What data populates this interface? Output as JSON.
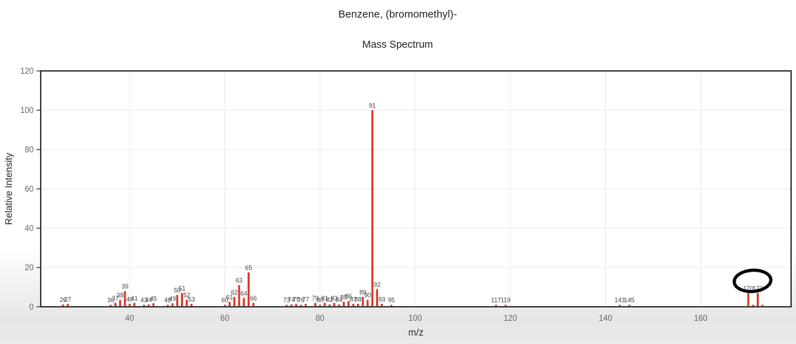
{
  "header": {
    "title": "Benzene, (bromomethyl)-",
    "subtitle": "Mass Spectrum"
  },
  "chart_data": {
    "type": "bar",
    "title": "Benzene, (bromomethyl)-",
    "subtitle": "Mass Spectrum",
    "xlabel": "m/z",
    "ylabel": "Relative Intensity",
    "xlim": [
      21.3,
      179.0
    ],
    "ylim": [
      0,
      120
    ],
    "x_ticks": [
      40,
      60,
      80,
      100,
      120,
      140,
      160
    ],
    "y_ticks": [
      0,
      20,
      40,
      60,
      80,
      100,
      120
    ],
    "grid": true,
    "legend": "none",
    "bar_color": "#d93226",
    "frame_color": "#3a3a3a",
    "grid_color": "#e9e9e9",
    "peaks": [
      {
        "mz": 26,
        "intensity": 1.2,
        "label": "26"
      },
      {
        "mz": 27,
        "intensity": 1.5,
        "label": "27"
      },
      {
        "mz": 36,
        "intensity": 1.0,
        "label": "36"
      },
      {
        "mz": 37,
        "intensity": 2.0,
        "label": "37"
      },
      {
        "mz": 38,
        "intensity": 3.5,
        "label": "38"
      },
      {
        "mz": 39,
        "intensity": 8.0,
        "label": "39"
      },
      {
        "mz": 40,
        "intensity": 1.5,
        "label": "40"
      },
      {
        "mz": 41,
        "intensity": 2.0,
        "label": "41"
      },
      {
        "mz": 43,
        "intensity": 1.0,
        "label": "43"
      },
      {
        "mz": 44,
        "intensity": 1.2,
        "label": "44"
      },
      {
        "mz": 45,
        "intensity": 1.8,
        "label": "45"
      },
      {
        "mz": 48,
        "intensity": 1.0,
        "label": "48"
      },
      {
        "mz": 49,
        "intensity": 1.8,
        "label": "49"
      },
      {
        "mz": 50,
        "intensity": 6.0,
        "label": "50"
      },
      {
        "mz": 51,
        "intensity": 7.0,
        "label": "51"
      },
      {
        "mz": 52,
        "intensity": 3.5,
        "label": "52"
      },
      {
        "mz": 53,
        "intensity": 1.5,
        "label": "53"
      },
      {
        "mz": 60,
        "intensity": 1.0,
        "label": "60"
      },
      {
        "mz": 61,
        "intensity": 2.5,
        "label": "61"
      },
      {
        "mz": 62,
        "intensity": 5.0,
        "label": "62"
      },
      {
        "mz": 63,
        "intensity": 11.0,
        "label": "63"
      },
      {
        "mz": 64,
        "intensity": 4.5,
        "label": "64"
      },
      {
        "mz": 65,
        "intensity": 17.5,
        "label": "65"
      },
      {
        "mz": 66,
        "intensity": 2.0,
        "label": "66"
      },
      {
        "mz": 73,
        "intensity": 1.0,
        "label": "73"
      },
      {
        "mz": 74,
        "intensity": 1.2,
        "label": "74"
      },
      {
        "mz": 75,
        "intensity": 1.5,
        "label": "75"
      },
      {
        "mz": 76,
        "intensity": 1.0,
        "label": "76"
      },
      {
        "mz": 77,
        "intensity": 1.5,
        "label": "77"
      },
      {
        "mz": 79,
        "intensity": 2.0,
        "label": "79"
      },
      {
        "mz": 80,
        "intensity": 1.0,
        "label": "80"
      },
      {
        "mz": 81,
        "intensity": 2.0,
        "label": "81"
      },
      {
        "mz": 82,
        "intensity": 1.2,
        "label": "82"
      },
      {
        "mz": 83,
        "intensity": 2.0,
        "label": "83"
      },
      {
        "mz": 84,
        "intensity": 1.2,
        "label": "84"
      },
      {
        "mz": 85,
        "intensity": 2.5,
        "label": "85"
      },
      {
        "mz": 86,
        "intensity": 3.0,
        "label": "86"
      },
      {
        "mz": 87,
        "intensity": 1.5,
        "label": "87"
      },
      {
        "mz": 88,
        "intensity": 1.5,
        "label": "88"
      },
      {
        "mz": 89,
        "intensity": 5.0,
        "label": "89"
      },
      {
        "mz": 90,
        "intensity": 3.5,
        "label": "90"
      },
      {
        "mz": 91,
        "intensity": 100.0,
        "label": "91"
      },
      {
        "mz": 92,
        "intensity": 9.0,
        "label": "92"
      },
      {
        "mz": 93,
        "intensity": 1.5,
        "label": "93"
      },
      {
        "mz": 95,
        "intensity": 1.0,
        "label": "95"
      },
      {
        "mz": 117,
        "intensity": 1.0,
        "label": "117"
      },
      {
        "mz": 119,
        "intensity": 1.0,
        "label": "119"
      },
      {
        "mz": 143,
        "intensity": 1.0,
        "label": "143"
      },
      {
        "mz": 145,
        "intensity": 1.0,
        "label": "145"
      },
      {
        "mz": 170,
        "intensity": 7.0,
        "label": "170"
      },
      {
        "mz": 171,
        "intensity": 1.0,
        "label": ""
      },
      {
        "mz": 172,
        "intensity": 7.0,
        "label": "172"
      },
      {
        "mz": 173,
        "intensity": 1.0,
        "label": ""
      }
    ],
    "annotation": {
      "shape": "hand-drawn-ellipse",
      "around": "peak labels 170 and 172",
      "mz_center": 170.9,
      "intensity_center": 13.2,
      "rx_mz": 3.85,
      "ry_intensity": 5.4,
      "rotation_deg": -4,
      "stroke_width": 4.5,
      "color": "#000000"
    }
  }
}
